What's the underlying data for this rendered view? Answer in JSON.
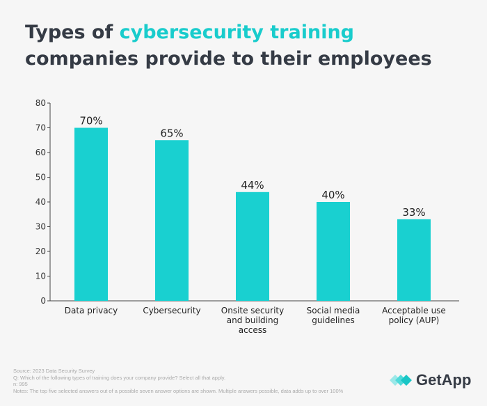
{
  "title": {
    "before": "Types of ",
    "highlight": "cybersecurity training",
    "after": " companies provide to their employees"
  },
  "colors": {
    "bar": "#19d0d0",
    "highlight": "#19cccc",
    "text": "#353b45",
    "axis": "#444444"
  },
  "chart_data": {
    "type": "bar",
    "title": "Types of cybersecurity training companies provide to their employees",
    "categories": [
      [
        "Data privacy"
      ],
      [
        "Cybersecurity"
      ],
      [
        "Onsite security",
        "and building",
        "access"
      ],
      [
        "Social media",
        "guidelines"
      ],
      [
        "Acceptable use",
        "policy (AUP)"
      ]
    ],
    "values": [
      70,
      65,
      44,
      40,
      33
    ],
    "data_labels": [
      "70%",
      "65%",
      "44%",
      "40%",
      "33%"
    ],
    "ylim": [
      0,
      80
    ],
    "yticks": [
      0,
      10,
      20,
      30,
      40,
      50,
      60,
      70,
      80
    ],
    "grid": false,
    "xlabel": "",
    "ylabel": ""
  },
  "footer": {
    "source": "Source: 2023 Data Security Survey",
    "question": "Q: Which of the following types of training does your company provide? Select all that apply.",
    "n": "n: 995",
    "notes": "Notes: The top five selected answers out of a possible seven answer options are shown. Multiple answers possible, data adds up to over 100%"
  },
  "logo": {
    "text": "GetApp"
  }
}
